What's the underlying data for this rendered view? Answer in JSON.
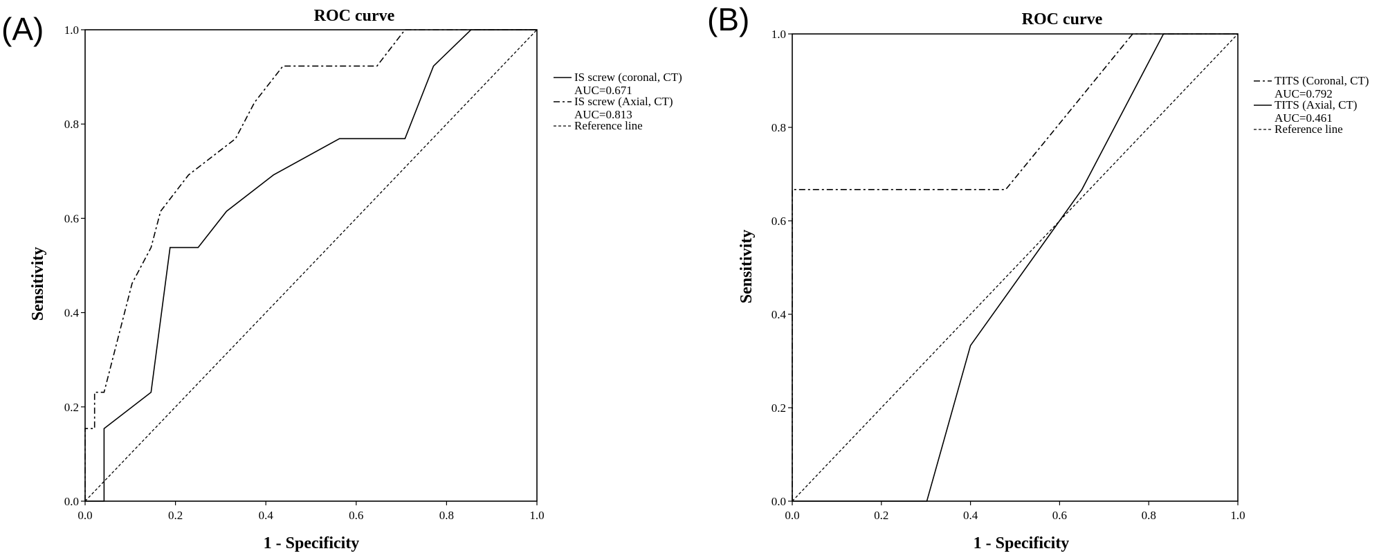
{
  "chart_data": [
    {
      "type": "line",
      "panel_label": "(A)",
      "title": "ROC curve",
      "xlabel": "1 - Specificity",
      "ylabel": "Sensitivity",
      "xlim": [
        0,
        1
      ],
      "ylim": [
        0,
        1
      ],
      "xticks": [
        "0.0",
        "0.2",
        "0.4",
        "0.6",
        "0.8",
        "1.0"
      ],
      "yticks": [
        "0.0",
        "0.2",
        "0.4",
        "0.6",
        "0.8",
        "1.0"
      ],
      "grid": false,
      "legend_position": "right",
      "series": [
        {
          "name": "IS screw (coronal, CT)",
          "auc_label": "AUC=0.671",
          "style": "solid",
          "points": [
            [
              0,
              0
            ],
            [
              0.042,
              0
            ],
            [
              0.042,
              0.154
            ],
            [
              0.146,
              0.231
            ],
            [
              0.188,
              0.538
            ],
            [
              0.25,
              0.538
            ],
            [
              0.313,
              0.615
            ],
            [
              0.417,
              0.692
            ],
            [
              0.563,
              0.769
            ],
            [
              0.708,
              0.769
            ],
            [
              0.771,
              0.923
            ],
            [
              0.854,
              1.0
            ],
            [
              1.0,
              1.0
            ]
          ]
        },
        {
          "name": "IS screw (Axial, CT)",
          "auc_label": "AUC=0.813",
          "style": "dashed",
          "points": [
            [
              0,
              0
            ],
            [
              0,
              0.154
            ],
            [
              0.021,
              0.154
            ],
            [
              0.021,
              0.231
            ],
            [
              0.042,
              0.231
            ],
            [
              0.104,
              0.462
            ],
            [
              0.146,
              0.538
            ],
            [
              0.167,
              0.615
            ],
            [
              0.229,
              0.692
            ],
            [
              0.333,
              0.769
            ],
            [
              0.375,
              0.846
            ],
            [
              0.438,
              0.923
            ],
            [
              0.646,
              0.923
            ],
            [
              0.708,
              1.0
            ],
            [
              1.0,
              1.0
            ]
          ]
        },
        {
          "name": "Reference line",
          "style": "dotted",
          "points": [
            [
              0,
              0
            ],
            [
              1,
              1
            ]
          ]
        }
      ]
    },
    {
      "type": "line",
      "panel_label": "(B)",
      "title": "ROC curve",
      "xlabel": "1 - Specificity",
      "ylabel": "Sensitivity",
      "xlim": [
        0,
        1
      ],
      "ylim": [
        0,
        1
      ],
      "xticks": [
        "0.0",
        "0.2",
        "0.4",
        "0.6",
        "0.8",
        "1.0"
      ],
      "yticks": [
        "0.0",
        "0.2",
        "0.4",
        "0.6",
        "0.8",
        "1.0"
      ],
      "grid": false,
      "legend_position": "right",
      "series": [
        {
          "name": "TITS  (Coronal, CT)",
          "auc_label": "AUC=0.792",
          "style": "dashed",
          "points": [
            [
              0,
              0
            ],
            [
              0,
              0.667
            ],
            [
              0.479,
              0.667
            ],
            [
              0.764,
              1.0
            ],
            [
              1.0,
              1.0
            ]
          ]
        },
        {
          "name": "TITS  (Axial, CT)",
          "auc_label": "AUC=0.461",
          "style": "solid",
          "points": [
            [
              0,
              0
            ],
            [
              0.302,
              0
            ],
            [
              0.4,
              0.333
            ],
            [
              0.65,
              0.667
            ],
            [
              0.833,
              1.0
            ],
            [
              1.0,
              1.0
            ]
          ]
        },
        {
          "name": "Reference line",
          "style": "dotted",
          "points": [
            [
              0,
              0
            ],
            [
              1,
              1
            ]
          ]
        }
      ]
    }
  ]
}
